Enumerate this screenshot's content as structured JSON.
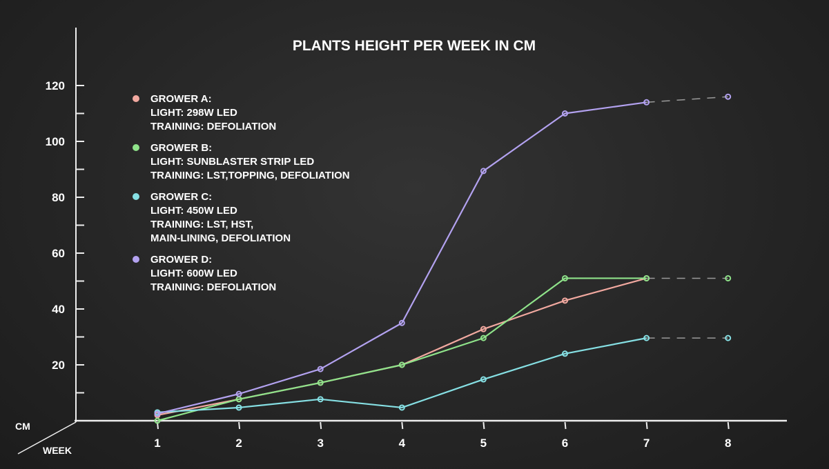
{
  "chart_data": {
    "type": "line",
    "title": "PLANTS HEIGHT PER WEEK IN CM",
    "xlabel": "WEEK",
    "ylabel": "CM",
    "x": [
      1,
      2,
      3,
      4,
      5,
      6,
      7,
      8
    ],
    "xlim": [
      0,
      9
    ],
    "ylim": [
      0,
      120
    ],
    "yticks": [
      20,
      40,
      60,
      80,
      100,
      120
    ],
    "grid": false,
    "legend_position": "top-left",
    "series": [
      {
        "name": "GROWER A:",
        "lines": [
          "LIGHT: 298W LED",
          "TRAINING: DEFOLIATION"
        ],
        "color": "#f2a9a0",
        "values": [
          2,
          7.7,
          13.6,
          20,
          32.8,
          43,
          51,
          null
        ]
      },
      {
        "name": "GROWER B:",
        "lines": [
          "LIGHT: SUNBLASTER STRIP  LED",
          "TRAINING: LST,TOPPING,  DEFOLIATION"
        ],
        "color": "#8fe38a",
        "values": [
          0,
          7.7,
          13.6,
          20,
          29.6,
          51,
          51,
          51
        ]
      },
      {
        "name": "GROWER C:",
        "lines": [
          "LIGHT: 450W LED",
          "TRAINING: LST, HST,",
          "MAIN-LINING, DEFOLIATION"
        ],
        "color": "#86e0e4",
        "values": [
          3,
          4.7,
          7.7,
          4.7,
          14.8,
          24,
          29.6,
          29.6
        ]
      },
      {
        "name": "GROWER D:",
        "lines": [
          "LIGHT: 600W LED",
          "TRAINING: DEFOLIATION"
        ],
        "color": "#b3a2f0",
        "values": [
          2.5,
          9.6,
          18.5,
          35,
          89.4,
          110,
          114,
          116
        ]
      }
    ],
    "projected_segment": "week 7 to 8 dashed"
  }
}
